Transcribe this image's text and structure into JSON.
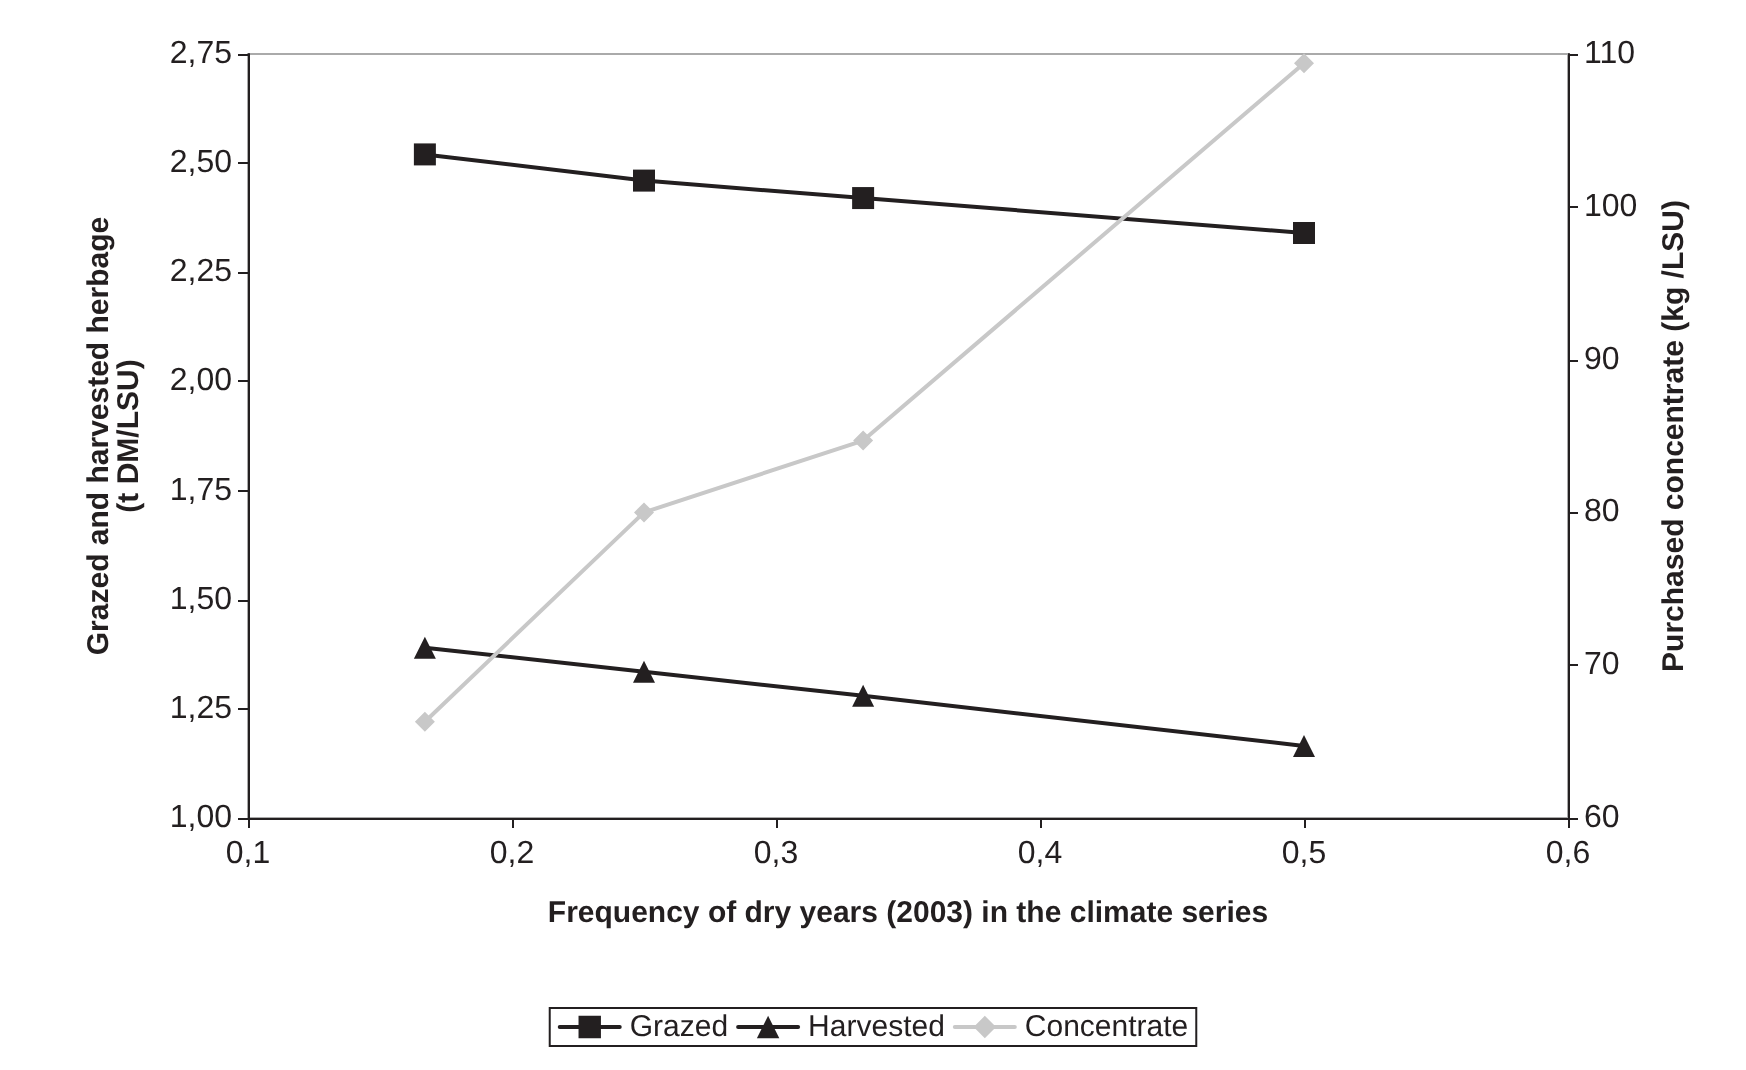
{
  "chart_data": {
    "type": "line",
    "xlabel": "Frequency of dry years (2003) in the climate series",
    "ylabel": "Grazed and harvested herbage\n(t DM/LSU)",
    "y2label": "Purchased concentrate (kg /LSU)",
    "x": [
      0.167,
      0.25,
      0.333,
      0.5
    ],
    "series": [
      {
        "name": "Grazed",
        "color": "#231f20",
        "marker": "square",
        "values": [
          2.52,
          2.46,
          2.42,
          2.34
        ]
      },
      {
        "name": "Harvested",
        "color": "#231f20",
        "marker": "triangle",
        "values": [
          1.39,
          1.335,
          1.28,
          1.165
        ]
      },
      {
        "name": "Concentrate",
        "color": "#c8c8c8",
        "marker": "diamond",
        "axis": "y2",
        "values": [
          66.3,
          80,
          84.7,
          109.4
        ]
      }
    ],
    "xlim": [
      0.1,
      0.6
    ],
    "xticks": [
      {
        "value": 0.1,
        "label": "0,1"
      },
      {
        "value": 0.2,
        "label": "0,2"
      },
      {
        "value": 0.3,
        "label": "0,3"
      },
      {
        "value": 0.4,
        "label": "0,4"
      },
      {
        "value": 0.5,
        "label": "0,5"
      },
      {
        "value": 0.6,
        "label": "0,6"
      }
    ],
    "ylim": [
      1,
      2.75
    ],
    "yticks": [
      {
        "value": 1,
        "label": "1,00"
      },
      {
        "value": 1.25,
        "label": "1,25"
      },
      {
        "value": 1.5,
        "label": "1,50"
      },
      {
        "value": 1.75,
        "label": "1,75"
      },
      {
        "value": 2,
        "label": "2,00"
      },
      {
        "value": 2.25,
        "label": "2,25"
      },
      {
        "value": 2.5,
        "label": "2,50"
      },
      {
        "value": 2.75,
        "label": "2,75"
      }
    ],
    "y2lim": [
      60,
      110
    ],
    "y2ticks": [
      60,
      70,
      80,
      90,
      100,
      110
    ],
    "grid": false,
    "legend": "bottom",
    "line_style": "solid"
  }
}
